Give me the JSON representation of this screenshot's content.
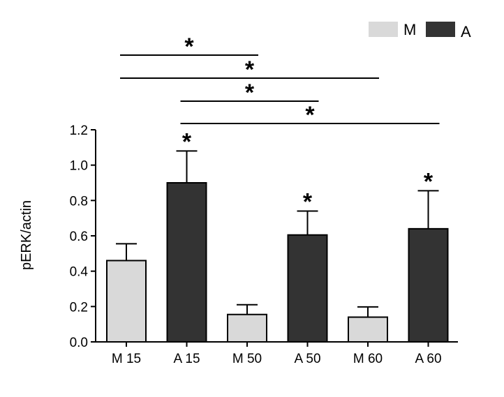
{
  "chart_data": {
    "type": "bar",
    "ylabel": "pERK/actin",
    "xlabel": "",
    "ylim": [
      0,
      1.2
    ],
    "yticks": [
      "0.0",
      "0.2",
      "0.4",
      "0.6",
      "0.8",
      "1.0",
      "1.2"
    ],
    "categories": [
      "M 15",
      "A 15",
      "M 50",
      "A 50",
      "M 60",
      "A 60"
    ],
    "values": [
      0.46,
      0.9,
      0.155,
      0.605,
      0.14,
      0.64
    ],
    "errors": [
      0.095,
      0.18,
      0.055,
      0.135,
      0.058,
      0.215
    ],
    "groups": [
      "M",
      "A",
      "M",
      "A",
      "M",
      "A"
    ],
    "bar_stars": [
      "",
      "*",
      "",
      "*",
      "",
      "*"
    ],
    "colors": {
      "M": "#d9d9d9",
      "A": "#333333"
    },
    "legend": {
      "placement": "top-right",
      "items": [
        {
          "key": "M",
          "label": "M"
        },
        {
          "key": "A",
          "label": "A"
        }
      ]
    },
    "comparisons": [
      {
        "from": "M 15",
        "to": "M 50",
        "label": "*"
      },
      {
        "from": "M 15",
        "to": "M 60",
        "label": "*"
      },
      {
        "from": "A 15",
        "to": "A 50",
        "label": "*"
      },
      {
        "from": "A 15",
        "to": "A 60",
        "label": "*"
      }
    ],
    "grid": false
  }
}
